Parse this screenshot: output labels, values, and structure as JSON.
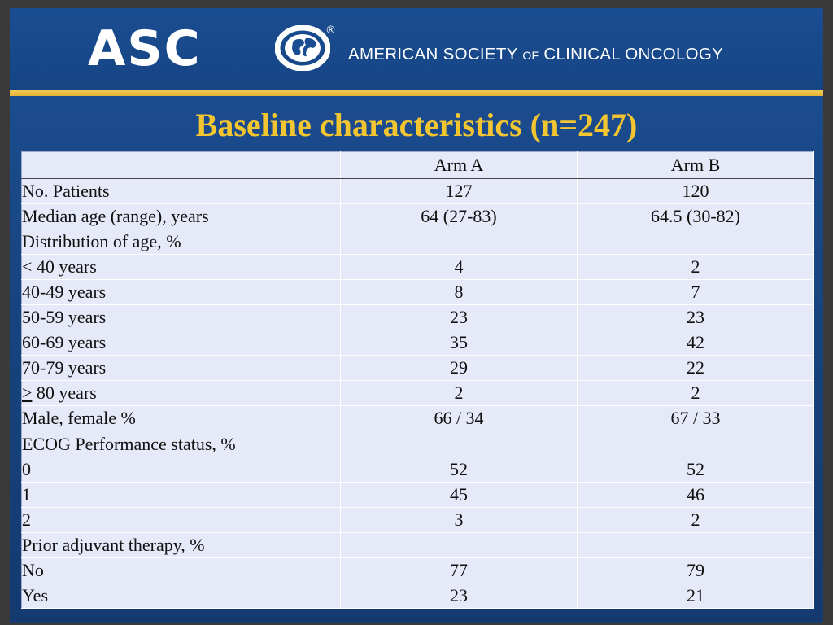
{
  "header": {
    "logo_text": "ASC",
    "logo_registered": "®",
    "org_name_part1": "AMERICAN SOCIETY ",
    "org_name_of": "OF",
    "org_name_part2": " CLINICAL ONCOLOGY",
    "logo_icon": "globe-icon",
    "colors": {
      "background": "#1a4d91",
      "accent_bar": "#e9bb3e",
      "title": "#f2c531",
      "table_bg": "#e6e9f7"
    }
  },
  "title": "Baseline characteristics (n=247)",
  "table": {
    "columns": [
      "",
      "Arm A",
      "Arm B"
    ],
    "rows": {
      "patients": {
        "label": "No. Patients",
        "a": "127",
        "b": "120"
      },
      "median_age": {
        "label": "Median age (range), years",
        "a": "64 (27-83)",
        "b": "64.5 (30-82)"
      },
      "age_dist": {
        "label": "Distribution of age, %"
      },
      "age_lt40": {
        "label": "< 40 years",
        "a": "4",
        "b": "2"
      },
      "age_40_49": {
        "label": "40-49 years",
        "a": "8",
        "b": "7"
      },
      "age_50_59": {
        "label": "50-59 years",
        "a": "23",
        "b": "23"
      },
      "age_60_69": {
        "label": "60-69 years",
        "a": "35",
        "b": "42"
      },
      "age_70_79": {
        "label": "70-79 years",
        "a": "29",
        "b": "22"
      },
      "age_ge80": {
        "symbol": ">",
        "label": " 80 years",
        "a": "2",
        "b": "2"
      },
      "sex": {
        "label": "Male, female %",
        "a": "66 / 34",
        "b": "67 / 33"
      },
      "ecog": {
        "label": "ECOG Performance status, %"
      },
      "ecog0": {
        "label": "0",
        "a": "52",
        "b": "52"
      },
      "ecog1": {
        "label": "1",
        "a": "45",
        "b": "46"
      },
      "ecog2": {
        "label": "2",
        "a": "3",
        "b": "2"
      },
      "adjuvant": {
        "label": "Prior adjuvant therapy, %"
      },
      "adj_no": {
        "label": "No",
        "a": "77",
        "b": "79"
      },
      "adj_yes": {
        "label": "Yes",
        "a": "23",
        "b": "21"
      }
    }
  }
}
